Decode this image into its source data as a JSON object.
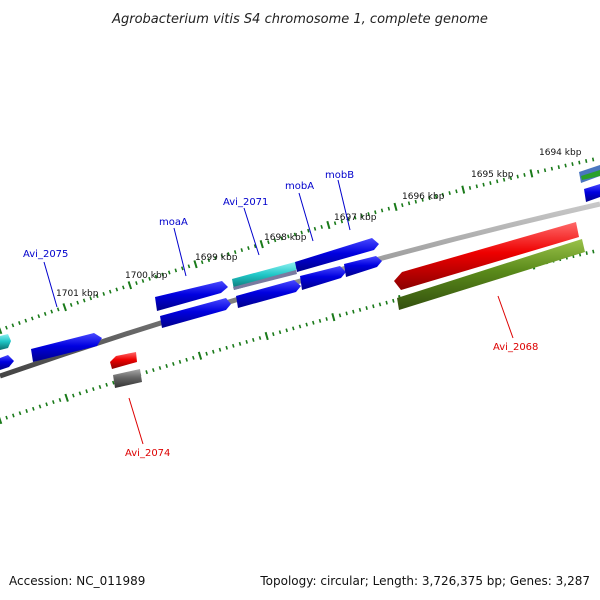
{
  "title": "Agrobacterium vitis S4 chromosome 1, complete genome",
  "footer": {
    "accession": "Accession: NC_011989",
    "summary": "Topology: circular; Length: 3,726,375 bp; Genes: 3,287"
  },
  "ticks": [
    "1694 kbp",
    "1695 kbp",
    "1696 kbp",
    "1697 kbp",
    "1698 kbp",
    "1699 kbp",
    "1700 kbp",
    "1701 kbp"
  ],
  "gene_labels": [
    {
      "text": "Avi_2075",
      "color": "#0000cc"
    },
    {
      "text": "moaA",
      "color": "#0000cc"
    },
    {
      "text": "Avi_2071",
      "color": "#0000cc"
    },
    {
      "text": "mobA",
      "color": "#0000cc"
    },
    {
      "text": "mobB",
      "color": "#0000cc"
    },
    {
      "text": "Avi_2068",
      "color": "#dd0000"
    },
    {
      "text": "Avi_2074",
      "color": "#dd0000"
    }
  ],
  "colors": {
    "cds_blue": "#0000e0",
    "rna_red": "#ee0000",
    "olive": "#5a8a1a",
    "cyan": "#20c8c8",
    "grey": "#666666",
    "backbone": "#888888",
    "tick_green": "#1a7a1a"
  }
}
